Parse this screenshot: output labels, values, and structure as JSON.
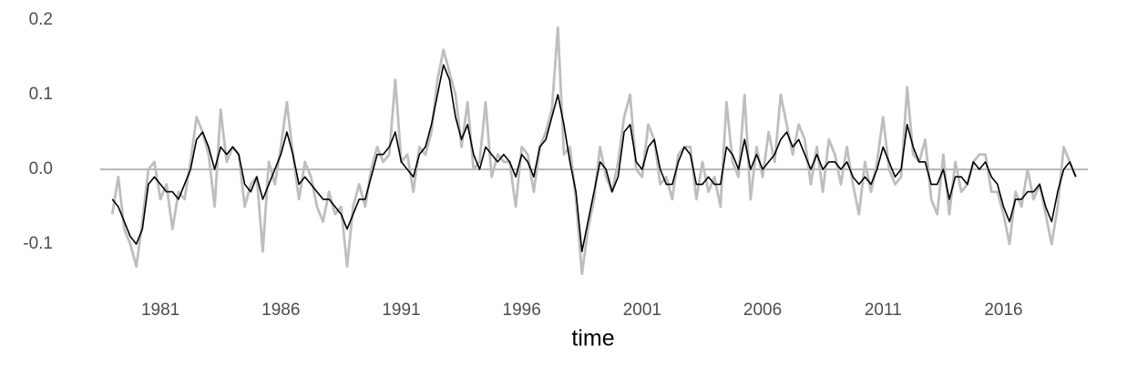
{
  "chart_data": {
    "type": "line",
    "xlabel": "time",
    "x": [
      1979,
      1979.25,
      1979.5,
      1979.75,
      1980,
      1980.25,
      1980.5,
      1980.75,
      1981,
      1981.25,
      1981.5,
      1981.75,
      1982,
      1982.25,
      1982.5,
      1982.75,
      1983,
      1983.25,
      1983.5,
      1983.75,
      1984,
      1984.25,
      1984.5,
      1984.75,
      1985,
      1985.25,
      1985.5,
      1985.75,
      1986,
      1986.25,
      1986.5,
      1986.75,
      1987,
      1987.25,
      1987.5,
      1987.75,
      1988,
      1988.25,
      1988.5,
      1988.75,
      1989,
      1989.25,
      1989.5,
      1989.75,
      1990,
      1990.25,
      1990.5,
      1990.75,
      1991,
      1991.25,
      1991.5,
      1991.75,
      1992,
      1992.25,
      1992.5,
      1992.75,
      1993,
      1993.25,
      1993.5,
      1993.75,
      1994,
      1994.25,
      1994.5,
      1994.75,
      1995,
      1995.25,
      1995.5,
      1995.75,
      1996,
      1996.25,
      1996.5,
      1996.75,
      1997,
      1997.25,
      1997.5,
      1997.75,
      1998,
      1998.25,
      1998.5,
      1998.75,
      1999,
      1999.25,
      1999.5,
      1999.75,
      2000,
      2000.25,
      2000.5,
      2000.75,
      2001,
      2001.25,
      2001.5,
      2001.75,
      2002,
      2002.25,
      2002.5,
      2002.75,
      2003,
      2003.25,
      2003.5,
      2003.75,
      2004,
      2004.25,
      2004.5,
      2004.75,
      2005,
      2005.25,
      2005.5,
      2005.75,
      2006,
      2006.25,
      2006.5,
      2006.75,
      2007,
      2007.25,
      2007.5,
      2007.75,
      2008,
      2008.25,
      2008.5,
      2008.75,
      2009,
      2009.25,
      2009.5,
      2009.75,
      2010,
      2010.25,
      2010.5,
      2010.75,
      2011,
      2011.25,
      2011.5,
      2011.75,
      2012,
      2012.25,
      2012.5,
      2012.75,
      2013,
      2013.25,
      2013.5,
      2013.75,
      2014,
      2014.25,
      2014.5,
      2014.75,
      2015,
      2015.25,
      2015.5,
      2015.75,
      2016,
      2016.25,
      2016.5,
      2016.75,
      2017,
      2017.25,
      2017.5,
      2017.75,
      2018,
      2018.25,
      2018.5,
      2018.75,
      2019
    ],
    "series": [
      {
        "color": "#bebebe",
        "values": [
          -0.06,
          -0.01,
          -0.08,
          -0.1,
          -0.13,
          -0.07,
          0.0,
          0.01,
          -0.04,
          -0.02,
          -0.08,
          -0.03,
          -0.04,
          0.01,
          0.07,
          0.05,
          0.02,
          -0.05,
          0.08,
          0.01,
          0.03,
          0.02,
          -0.05,
          -0.02,
          -0.01,
          -0.11,
          0.01,
          -0.02,
          0.03,
          0.09,
          0.02,
          -0.04,
          0.01,
          -0.01,
          -0.05,
          -0.07,
          -0.03,
          -0.06,
          -0.05,
          -0.13,
          -0.05,
          -0.02,
          -0.05,
          0.0,
          0.03,
          0.01,
          0.02,
          0.12,
          0.01,
          0.02,
          -0.03,
          0.03,
          0.02,
          0.05,
          0.12,
          0.16,
          0.13,
          0.1,
          0.03,
          0.09,
          0.0,
          0.01,
          0.09,
          -0.01,
          0.02,
          0.01,
          0.01,
          -0.05,
          0.03,
          0.02,
          -0.03,
          0.03,
          0.05,
          0.08,
          0.19,
          0.02,
          0.03,
          -0.04,
          -0.14,
          -0.08,
          -0.04,
          0.03,
          -0.01,
          -0.03,
          0.01,
          0.07,
          0.1,
          0.0,
          -0.01,
          0.06,
          0.04,
          -0.02,
          -0.01,
          -0.04,
          0.02,
          0.03,
          0.03,
          -0.04,
          0.01,
          -0.03,
          -0.01,
          -0.05,
          0.09,
          0.01,
          -0.01,
          0.1,
          -0.04,
          0.03,
          -0.01,
          0.05,
          0.01,
          0.1,
          0.06,
          0.02,
          0.06,
          0.04,
          -0.02,
          0.03,
          -0.03,
          0.04,
          0.02,
          -0.02,
          0.03,
          -0.02,
          -0.06,
          0.01,
          -0.03,
          0.01,
          0.07,
          0.0,
          -0.02,
          -0.01,
          0.11,
          0.02,
          0.01,
          0.04,
          -0.04,
          -0.06,
          0.02,
          -0.06,
          0.01,
          -0.03,
          -0.02,
          0.01,
          0.02,
          0.02,
          -0.03,
          -0.03,
          -0.06,
          -0.1,
          -0.03,
          -0.05,
          0.0,
          -0.04,
          -0.02,
          -0.06,
          -0.1,
          -0.05,
          0.03,
          0.01,
          -0.01
        ]
      },
      {
        "color": "#000000",
        "values": [
          -0.04,
          -0.05,
          -0.07,
          -0.09,
          -0.1,
          -0.08,
          -0.02,
          -0.01,
          -0.02,
          -0.03,
          -0.03,
          -0.04,
          -0.02,
          0.0,
          0.04,
          0.05,
          0.03,
          0.0,
          0.03,
          0.02,
          0.03,
          0.02,
          -0.02,
          -0.03,
          -0.01,
          -0.04,
          -0.02,
          0.0,
          0.02,
          0.05,
          0.02,
          -0.02,
          -0.01,
          -0.02,
          -0.03,
          -0.04,
          -0.04,
          -0.05,
          -0.06,
          -0.08,
          -0.06,
          -0.04,
          -0.04,
          -0.01,
          0.02,
          0.02,
          0.03,
          0.05,
          0.01,
          0.0,
          -0.01,
          0.02,
          0.03,
          0.06,
          0.1,
          0.14,
          0.12,
          0.07,
          0.04,
          0.06,
          0.02,
          0.0,
          0.03,
          0.02,
          0.01,
          0.02,
          0.01,
          -0.01,
          0.02,
          0.01,
          -0.01,
          0.03,
          0.04,
          0.07,
          0.1,
          0.06,
          0.01,
          -0.03,
          -0.11,
          -0.07,
          -0.03,
          0.01,
          0.0,
          -0.03,
          -0.01,
          0.05,
          0.06,
          0.01,
          0.0,
          0.03,
          0.04,
          0.0,
          -0.02,
          -0.02,
          0.01,
          0.03,
          0.02,
          -0.02,
          -0.02,
          -0.01,
          -0.02,
          -0.02,
          0.03,
          0.02,
          0.0,
          0.04,
          0.0,
          0.02,
          0.0,
          0.01,
          0.02,
          0.04,
          0.05,
          0.03,
          0.04,
          0.02,
          0.0,
          0.02,
          0.0,
          0.01,
          0.01,
          0.0,
          0.01,
          -0.01,
          -0.02,
          -0.01,
          -0.02,
          0.0,
          0.03,
          0.01,
          -0.01,
          0.0,
          0.06,
          0.03,
          0.01,
          0.01,
          -0.02,
          -0.02,
          0.0,
          -0.04,
          -0.01,
          -0.01,
          -0.02,
          0.01,
          0.0,
          0.01,
          -0.01,
          -0.02,
          -0.05,
          -0.07,
          -0.04,
          -0.04,
          -0.03,
          -0.03,
          -0.02,
          -0.05,
          -0.07,
          -0.03,
          0.0,
          0.01,
          -0.01
        ]
      }
    ],
    "xlim": [
      1978.5,
      2019.5
    ],
    "xticks": [
      1981,
      1986,
      1991,
      1996,
      2001,
      2006,
      2011,
      2016
    ],
    "ylim": [
      -0.15,
      0.2
    ],
    "yticks": [
      {
        "value": -0.1,
        "label": "-0.1"
      },
      {
        "value": 0,
        "label": "0.0"
      },
      0.1,
      0.2
    ],
    "hline": 0,
    "hline_color": "#a0a0a0"
  }
}
